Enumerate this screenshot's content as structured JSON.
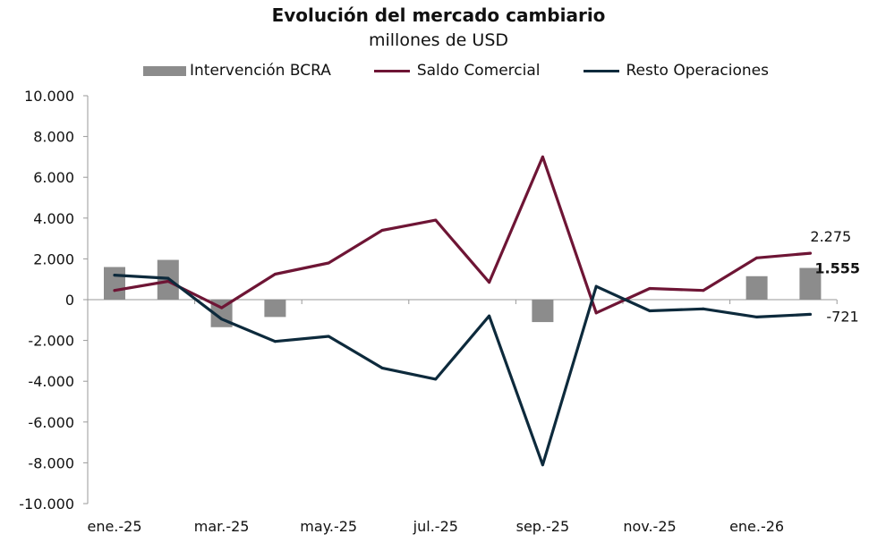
{
  "chart_data": {
    "type": "bar+line",
    "title": "Evolución del mercado cambiario",
    "subtitle": "millones de USD",
    "ylim": [
      -10000,
      10000
    ],
    "yticks": [
      10000,
      8000,
      6000,
      4000,
      2000,
      0,
      -2000,
      -4000,
      -6000,
      -8000,
      -10000
    ],
    "ytick_labels": [
      "10.000",
      "8.000",
      "6.000",
      "4.000",
      "2.000",
      "0",
      "-2.000",
      "-4.000",
      "-6.000",
      "-8.000",
      "-10.000"
    ],
    "xtick_labels": [
      "ene.-25",
      "mar.-25",
      "may.-25",
      "jul.-25",
      "sep.-25",
      "nov.-25",
      "ene.-26"
    ],
    "categories": [
      "ene.-25",
      "feb.-25",
      "mar.-25",
      "abr.-25",
      "may.-25",
      "jun.-25",
      "jul.-25",
      "ago.-25",
      "sep.-25",
      "oct.-25",
      "nov.-25",
      "dic.-25",
      "ene.-26",
      "feb.-26"
    ],
    "series": [
      {
        "name": "Intervención BCRA",
        "type": "bar",
        "color": "#8c8c8c",
        "values": [
          1600,
          1950,
          -1350,
          -850,
          0,
          0,
          0,
          0,
          -1100,
          0,
          0,
          0,
          1150,
          1555
        ]
      },
      {
        "name": "Saldo Comercial",
        "type": "line",
        "color": "#6e1535",
        "values": [
          450,
          900,
          -400,
          1250,
          1800,
          3400,
          3900,
          850,
          7000,
          -650,
          550,
          450,
          2050,
          2275
        ]
      },
      {
        "name": "Resto Operaciones",
        "type": "line",
        "color": "#0d2a3c",
        "values": [
          1200,
          1050,
          -950,
          -2050,
          -1800,
          -3350,
          -3900,
          -800,
          -8100,
          650,
          -550,
          -450,
          -850,
          -721
        ]
      }
    ],
    "data_labels": [
      {
        "text": "2.275",
        "series": "Saldo Comercial",
        "bold": false
      },
      {
        "text": "1.555",
        "series": "Intervención BCRA",
        "bold": true
      },
      {
        "text": "-721",
        "series": "Resto Operaciones",
        "bold": false
      }
    ],
    "legend": "top"
  }
}
